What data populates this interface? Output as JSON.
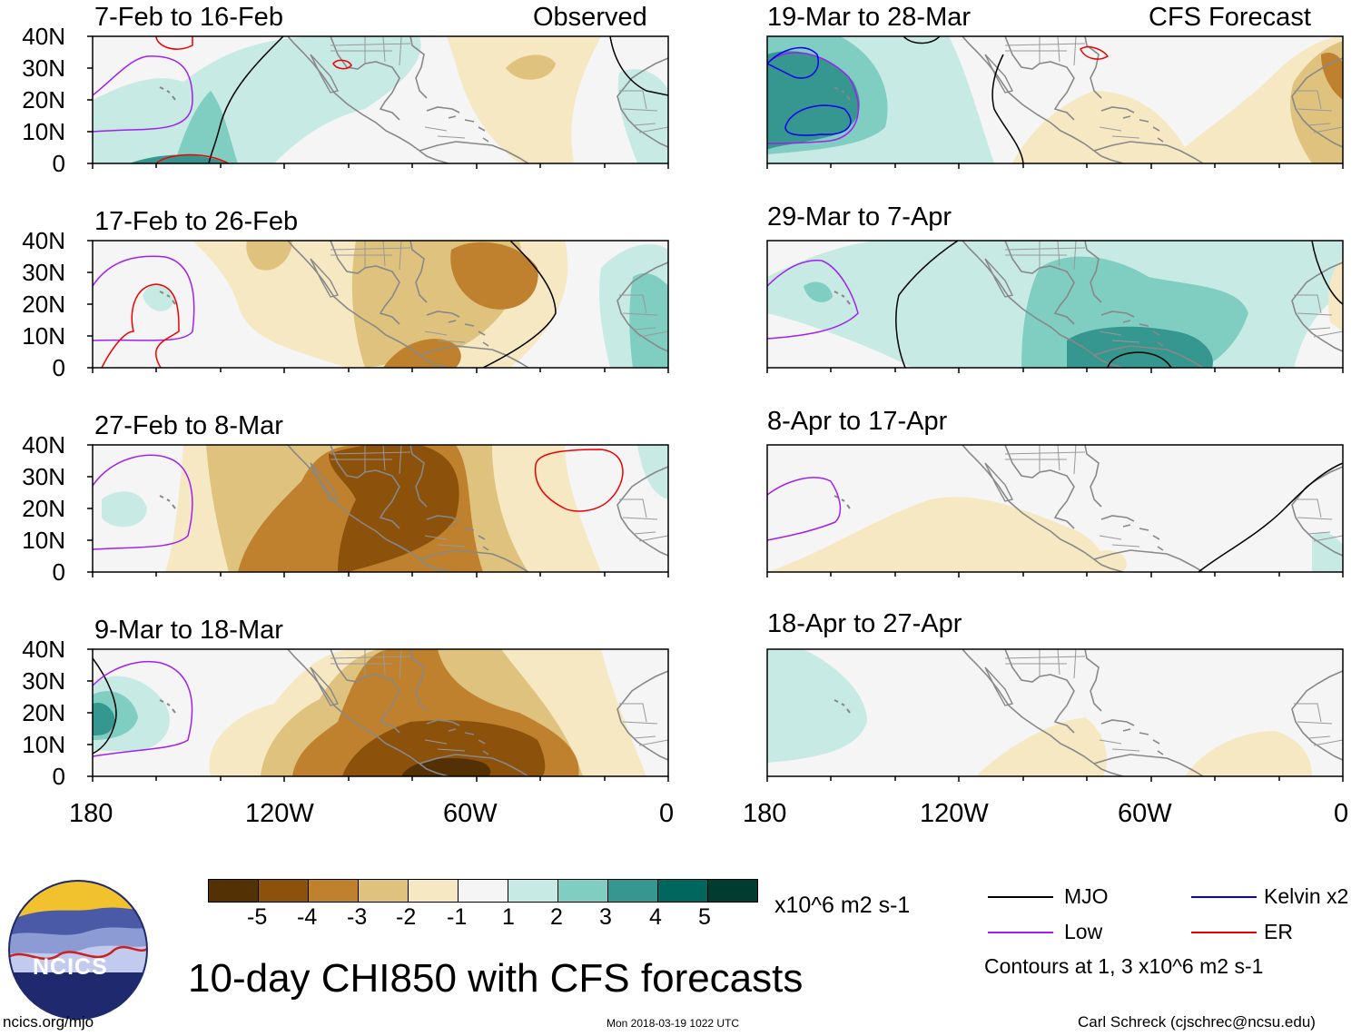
{
  "title": "10-day CHI850 with CFS forecasts",
  "labels": {
    "observed": "Observed",
    "forecast": "CFS Forecast"
  },
  "panels": [
    {
      "period": "7-Feb to 16-Feb",
      "kind": "observed"
    },
    {
      "period": "17-Feb to 26-Feb",
      "kind": "observed"
    },
    {
      "period": "27-Feb to 8-Mar",
      "kind": "observed"
    },
    {
      "period": "9-Mar to 18-Mar",
      "kind": "observed"
    },
    {
      "period": "19-Mar to 28-Mar",
      "kind": "forecast"
    },
    {
      "period": "29-Mar to 7-Apr",
      "kind": "forecast"
    },
    {
      "period": "8-Apr to 17-Apr",
      "kind": "forecast"
    },
    {
      "period": "18-Apr to 27-Apr",
      "kind": "forecast"
    }
  ],
  "map_extent": {
    "lon": [
      -180,
      0
    ],
    "lat": [
      0,
      40
    ]
  },
  "lat_ticks": [
    "40N",
    "30N",
    "20N",
    "10N",
    "0"
  ],
  "lon_ticks": [
    "180",
    "120W",
    "60W",
    "0"
  ],
  "colorbar": {
    "labels": [
      "-5",
      "-4",
      "-3",
      "-2",
      "-1",
      "1",
      "2",
      "3",
      "4",
      "5"
    ],
    "colors": [
      "#543005",
      "#8c510a",
      "#bf812d",
      "#dfc27d",
      "#f6e8c3",
      "#f5f5f5",
      "#c7eae5",
      "#80cdc1",
      "#35978f",
      "#01665e",
      "#003c30"
    ],
    "units": "x10^6 m2 s-1"
  },
  "legend": {
    "items": [
      {
        "label": "MJO",
        "color": "#000000"
      },
      {
        "label": "Kelvin x2",
        "color": "#0000ee"
      },
      {
        "label": "Low",
        "color": "#a020f0"
      },
      {
        "label": "ER",
        "color": "#ee0000"
      }
    ],
    "contours_note": "Contours at 1, 3 x10^6 m2 s-1"
  },
  "logo": {
    "text": "NCICS"
  },
  "footer": {
    "url": "ncics.org/mjo",
    "timestamp": "Mon 2018-03-19 1022 UTC",
    "credit": "Carl Schreck (cjschrec@ncsu.edu)"
  }
}
